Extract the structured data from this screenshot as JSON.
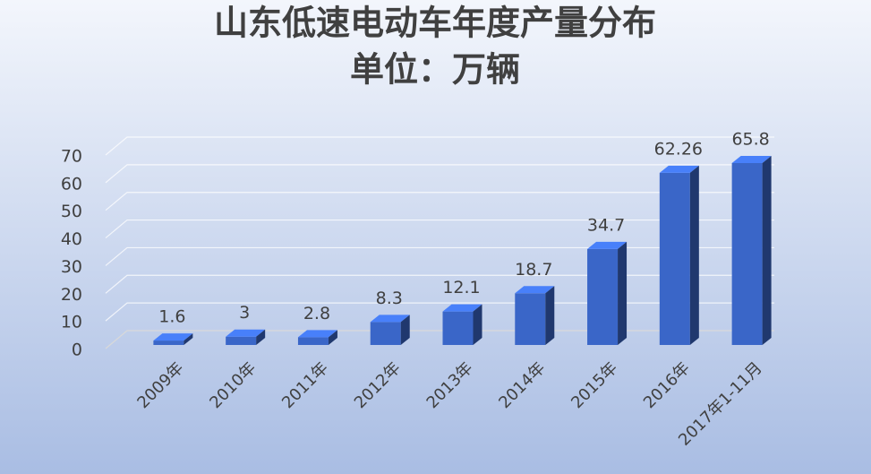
{
  "chart_data": {
    "type": "bar3d",
    "title": "山东低速电动车年度产量分布",
    "subtitle": "单位：万辆",
    "categories": [
      "2009年",
      "2010年",
      "2011年",
      "2012年",
      "2013年",
      "2014年",
      "2015年",
      "2016年",
      "2017年1-11月"
    ],
    "values": [
      1.6,
      3,
      2.8,
      8.3,
      12.1,
      18.7,
      34.7,
      62.26,
      65.8
    ],
    "color": "#3a66c8",
    "ylim": [
      0,
      70
    ],
    "yticks": [
      0,
      10,
      20,
      30,
      40,
      50,
      60,
      70
    ],
    "grid": true
  }
}
